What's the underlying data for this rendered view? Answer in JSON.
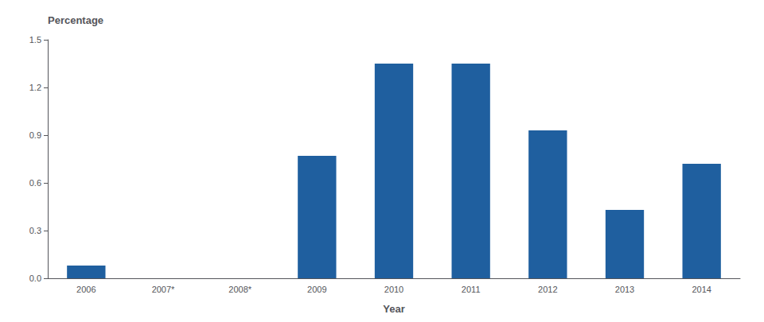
{
  "chart_data": {
    "type": "bar",
    "categories": [
      "2006",
      "2007*",
      "2008*",
      "2009",
      "2010",
      "2011",
      "2012",
      "2013",
      "2014"
    ],
    "values": [
      0.08,
      0.0,
      0.0,
      0.77,
      1.35,
      1.35,
      0.93,
      0.43,
      0.72
    ],
    "color": "#1F5F9F",
    "xlabel": "Year",
    "ylabel": "Percentage",
    "ylim": [
      0,
      1.5
    ],
    "yticks": [
      {
        "value": 0,
        "label": "0.0"
      },
      0.3,
      0.6,
      0.9,
      1.2,
      1.5
    ],
    "grid": false
  }
}
